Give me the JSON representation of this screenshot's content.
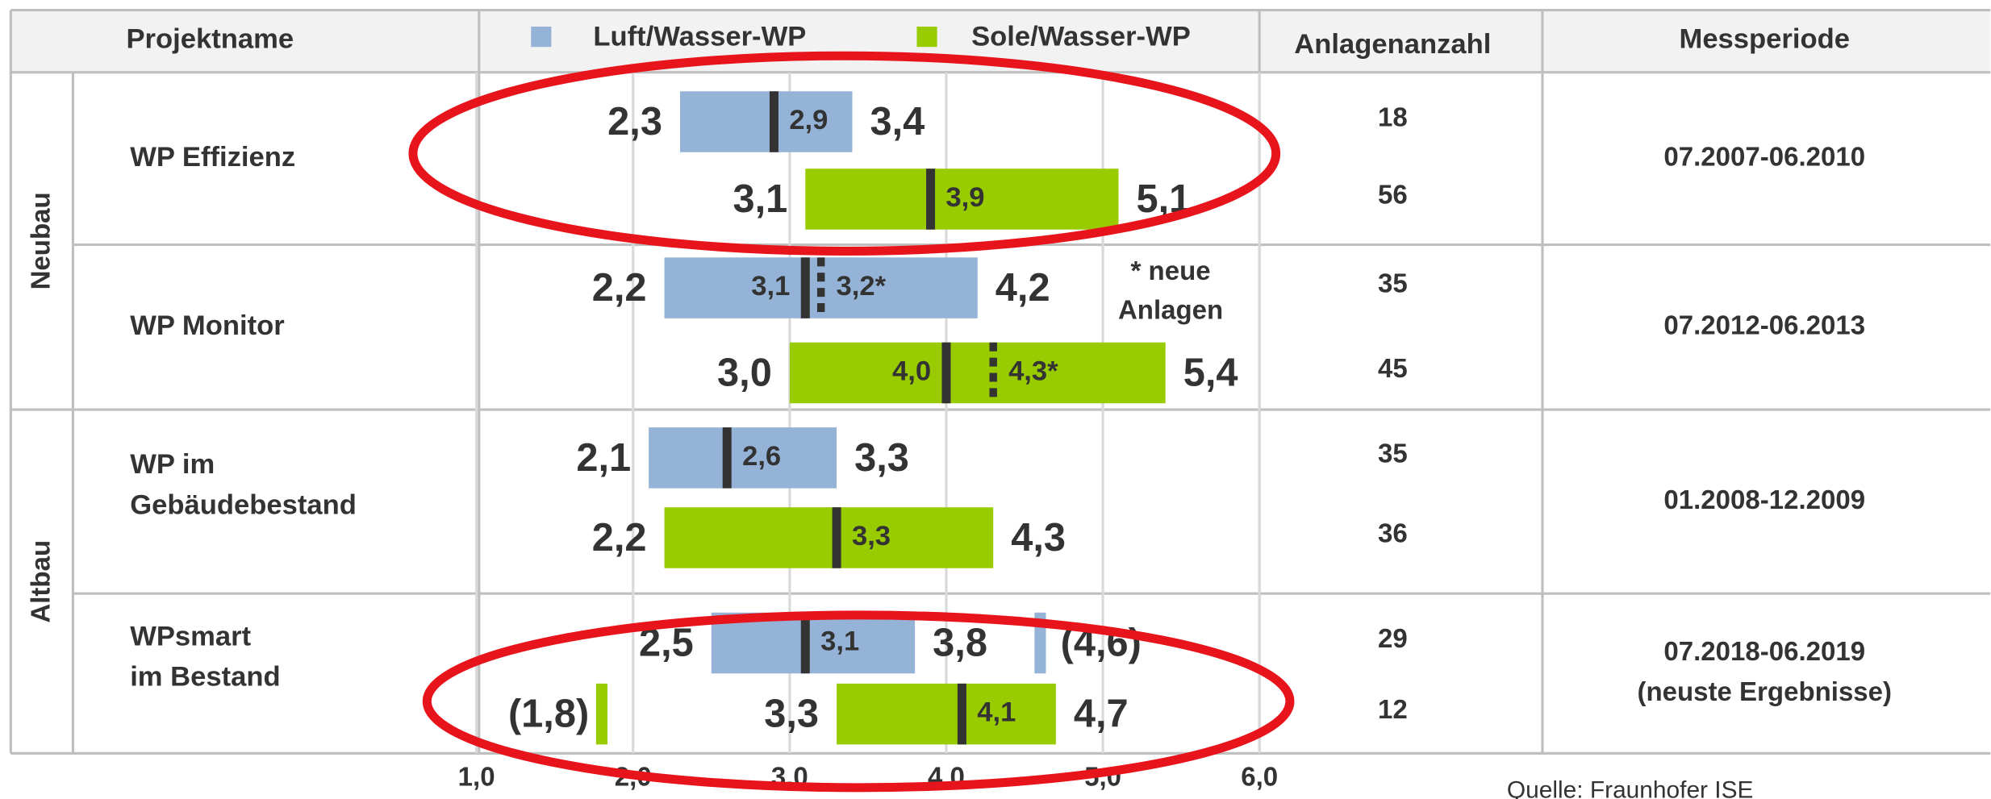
{
  "chart_data": {
    "type": "range",
    "xlim": [
      1,
      6
    ],
    "xticks": [
      {
        "value": 1,
        "label": "1,0"
      },
      {
        "value": 2,
        "label": "2,0"
      },
      {
        "value": 3,
        "label": "3,0"
      },
      {
        "value": 4,
        "label": "4,0"
      },
      {
        "value": 5,
        "label": "5,0"
      },
      {
        "value": 6,
        "label": "6,0"
      }
    ],
    "grid": true,
    "columns": [
      "Projektname",
      "Anlagenanzahl",
      "Messperiode"
    ],
    "legend": [
      {
        "name": "Luft/Wasser-WP",
        "color": "#95b3d7"
      },
      {
        "name": "Sole/Wasser-WP",
        "color": "#99cc00"
      }
    ],
    "note": [
      "* neue",
      "Anlagen"
    ],
    "source": "Quelle: Fraunhofer ISE",
    "groups": [
      {
        "label": "Neubau",
        "projects": [
          {
            "name": [
              "WP Effizienz"
            ],
            "period": [
              "07.2007-06.2010"
            ],
            "rows": [
              {
                "values": [
                  2.3,
                  2.9,
                  3.4
                ],
                "value_labels": [
                  "2,3",
                  "2,9",
                  "3,4"
                ],
                "count": 18
              },
              {
                "values": [
                  3.1,
                  3.9,
                  5.1
                ],
                "value_labels": [
                  "3,1",
                  "3,9",
                  "5,1"
                ],
                "count": 56
              }
            ]
          },
          {
            "name": [
              "WP Monitor"
            ],
            "period": [
              "07.2012-06.2013"
            ],
            "rows": [
              {
                "values": [
                  2.2,
                  3.1,
                  4.2
                ],
                "value_labels": [
                  "2,2",
                  "3,1",
                  "4,2"
                ],
                "count": 35,
                "new": {
                  "value": 3.2,
                  "label": "3,2*"
                }
              },
              {
                "values": [
                  3.0,
                  4.0,
                  5.4
                ],
                "value_labels": [
                  "3,0",
                  "4,0",
                  "5,4"
                ],
                "count": 45,
                "new": {
                  "value": 4.3,
                  "label": "4,3*"
                }
              }
            ]
          }
        ]
      },
      {
        "label": "Altbau",
        "projects": [
          {
            "name": [
              "WP im",
              "Gebäudebestand"
            ],
            "period": [
              "01.2008-12.2009"
            ],
            "rows": [
              {
                "values": [
                  2.1,
                  2.6,
                  3.3
                ],
                "value_labels": [
                  "2,1",
                  "2,6",
                  "3,3"
                ],
                "count": 35
              },
              {
                "values": [
                  2.2,
                  3.3,
                  4.3
                ],
                "value_labels": [
                  "2,2",
                  "3,3",
                  "4,3"
                ],
                "count": 36
              }
            ]
          },
          {
            "name": [
              "WPsmart",
              "im Bestand"
            ],
            "period": [
              "07.2018-06.2019",
              "(neuste Ergebnisse)"
            ],
            "rows": [
              {
                "values": [
                  2.5,
                  3.1,
                  3.8
                ],
                "value_labels": [
                  "2,5",
                  "3,1",
                  "3,8"
                ],
                "count": 29,
                "outlier": {
                  "value": 4.6,
                  "label": "(4,6)"
                }
              },
              {
                "values": [
                  3.3,
                  4.1,
                  4.7
                ],
                "value_labels": [
                  "3,3",
                  "4,1",
                  "4,7"
                ],
                "count": 12,
                "outlier": {
                  "value": 1.8,
                  "label": "(1,8)"
                }
              }
            ]
          }
        ]
      }
    ]
  }
}
